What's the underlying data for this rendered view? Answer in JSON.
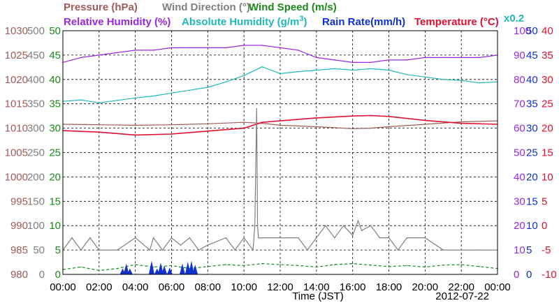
{
  "legend": {
    "pressure": "Pressure (hPa)",
    "wind_direction": "Wind Direction (°)",
    "wind_speed": "Wind Speed (m/s)",
    "relative_humidity": "Relative Humidity (%)",
    "absolute_humidity": "Absolute Humidity (g/m",
    "absolute_humidity_sup": "3",
    "absolute_humidity_end": ")",
    "rain_rate": "Rain Rate(mm/h)",
    "temperature": "Temperature (°C)",
    "rain_scale": "x0.2"
  },
  "x_axis": {
    "title": "Time (JST)",
    "date": "2012-07-22"
  },
  "colors": {
    "pressure": "#a05a5a",
    "wind_direction": "#808080",
    "wind_speed": "#1a8a1a",
    "relative_humidity": "#9a28e0",
    "absolute_humidity": "#20b8b8",
    "rain_rate": "#1030d0",
    "temperature": "#e01030",
    "grid": "#000000"
  },
  "chart_data": {
    "type": "line",
    "title": "",
    "xlabel": "Time (JST)",
    "x_ticks": [
      "00:00",
      "02:00",
      "04:00",
      "06:00",
      "08:00",
      "10:00",
      "12:00",
      "14:00",
      "16:00",
      "18:00",
      "20:00",
      "22:00",
      "00:00"
    ],
    "x_range_hours": [
      0,
      24
    ],
    "axes": {
      "pressure": {
        "ylim": [
          980,
          1030
        ],
        "ticks": [
          "980",
          "985",
          "990",
          "995",
          "1000",
          "1005",
          "1010",
          "1015",
          "1020",
          "1025",
          "1030"
        ]
      },
      "wind_direction": {
        "ylim": [
          0,
          500
        ],
        "ticks": [
          "0",
          "50",
          "100",
          "150",
          "200",
          "250",
          "300",
          "350",
          "400",
          "450",
          "500"
        ]
      },
      "wind_speed": {
        "ylim": [
          0,
          50
        ],
        "ticks": [
          "0",
          "5",
          "10",
          "15",
          "20",
          "25",
          "30",
          "35",
          "40",
          "45",
          "50"
        ]
      },
      "relative_humidity": {
        "ylim": [
          0,
          100
        ],
        "ticks": [
          "0",
          "10",
          "20",
          "30",
          "40",
          "50",
          "60",
          "70",
          "80",
          "90",
          "100"
        ]
      },
      "rain_rate": {
        "ylim": [
          0,
          50
        ],
        "ticks": [
          "0",
          "5",
          "10",
          "15",
          "20",
          "25",
          "30",
          "35",
          "40",
          "45",
          "50"
        ]
      },
      "temperature": {
        "ylim": [
          -10,
          40
        ],
        "ticks": [
          "-10",
          "-5",
          "0",
          "5",
          "10",
          "15",
          "20",
          "25",
          "30",
          "35",
          "40"
        ]
      }
    },
    "series": [
      {
        "name": "Pressure (hPa)",
        "axis": "pressure",
        "x": [
          0,
          2,
          4,
          6,
          8,
          10,
          11,
          12,
          14,
          16,
          17,
          18,
          20,
          22,
          24
        ],
        "values": [
          1010.8,
          1010.7,
          1010.6,
          1010.7,
          1010.9,
          1011.2,
          1011.0,
          1010.6,
          1010.3,
          1009.9,
          1010.0,
          1010.3,
          1010.8,
          1011.3,
          1011.5
        ]
      },
      {
        "name": "Relative Humidity (%)",
        "axis": "relative_humidity",
        "x": [
          0,
          0.5,
          1,
          2,
          3,
          4,
          5,
          6,
          7,
          8,
          9,
          10,
          11,
          12,
          13,
          14,
          15,
          16,
          17,
          18,
          19,
          20,
          21,
          22,
          23,
          24
        ],
        "values": [
          87,
          88,
          89,
          90,
          91,
          92,
          92,
          93,
          93,
          93,
          93,
          94,
          94,
          93,
          92,
          89,
          88,
          87,
          87,
          88,
          88,
          89,
          89,
          89,
          89,
          90
        ]
      },
      {
        "name": "Absolute Humidity (g/m3)",
        "axis": "wind_speed",
        "x": [
          0,
          1,
          2,
          3,
          4,
          5,
          6,
          7,
          8,
          9,
          10,
          11,
          12,
          13,
          14,
          15,
          16,
          17,
          18,
          19,
          20,
          21,
          22,
          23,
          24
        ],
        "values": [
          35.5,
          35.8,
          35.2,
          35.7,
          36.2,
          36.6,
          37.2,
          37.8,
          38.4,
          39.5,
          40.8,
          42.6,
          41.2,
          41.6,
          41.9,
          42.2,
          41.9,
          42.2,
          41.9,
          41.0,
          40.5,
          40.0,
          39.8,
          39.3,
          39.5
        ]
      },
      {
        "name": "Temperature (°C)",
        "axis": "temperature",
        "x": [
          0,
          2,
          4,
          6,
          8,
          10,
          11,
          12,
          14,
          16,
          17,
          18,
          20,
          22,
          24
        ],
        "values": [
          19.5,
          19.2,
          18.6,
          18.8,
          19.4,
          20.0,
          21.2,
          21.5,
          22.1,
          22.5,
          22.6,
          22.4,
          21.6,
          21.0,
          20.8
        ]
      },
      {
        "name": "Wind Direction (°)",
        "axis": "wind_direction",
        "x": [
          0,
          0.5,
          1,
          1.5,
          2,
          3,
          4,
          4.8,
          5,
          5.5,
          6,
          6.5,
          7,
          7.5,
          8,
          9,
          9.5,
          10,
          10.5,
          10.6,
          10.7,
          10.75,
          10.8,
          11,
          12,
          13,
          13.5,
          14,
          14.5,
          15,
          15.5,
          16,
          16.3,
          16.5,
          17,
          17.5,
          18,
          18.5,
          19,
          20,
          21,
          22,
          23,
          24
        ],
        "values": [
          50,
          75,
          50,
          75,
          50,
          50,
          75,
          50,
          75,
          50,
          75,
          60,
          75,
          50,
          60,
          75,
          50,
          75,
          50,
          100,
          340,
          100,
          75,
          75,
          75,
          75,
          50,
          75,
          100,
          75,
          100,
          80,
          110,
          90,
          100,
          75,
          75,
          50,
          75,
          75,
          50,
          50,
          50,
          50
        ]
      },
      {
        "name": "Wind Speed (m/s)",
        "axis": "wind_speed",
        "x": [
          0,
          1,
          2,
          3,
          4,
          5,
          6,
          7,
          8,
          9,
          10,
          11,
          12,
          13,
          14,
          15,
          16,
          17,
          18,
          19,
          20,
          21,
          22,
          23,
          24
        ],
        "values": [
          1.0,
          1.5,
          0.8,
          1.2,
          2.0,
          1.5,
          1.8,
          1.2,
          1.6,
          2.0,
          1.8,
          2.2,
          2.0,
          1.8,
          1.5,
          2.0,
          2.2,
          1.9,
          1.6,
          1.8,
          1.5,
          1.9,
          2.0,
          1.6,
          1.2
        ]
      },
      {
        "name": "Rain Rate(mm/h)",
        "axis": "rain_rate",
        "type": "bar",
        "x": [
          3.3,
          3.5,
          3.7,
          4.9,
          5.2,
          5.4,
          5.6,
          5.9,
          6.6,
          6.9,
          7.1,
          7.3
        ],
        "values": [
          1.2,
          2.2,
          1.2,
          2.8,
          1.2,
          2.4,
          1.8,
          1.4,
          2.2,
          2.6,
          2.8,
          2.0
        ]
      }
    ]
  }
}
